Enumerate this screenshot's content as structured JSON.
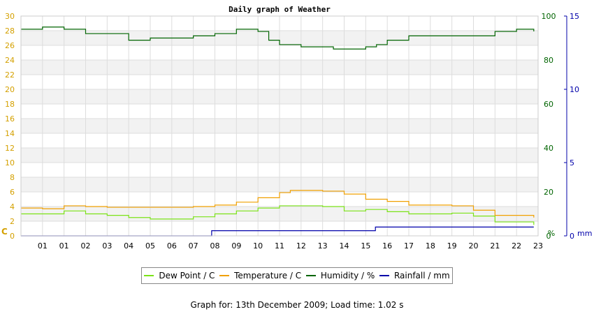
{
  "chart_data": {
    "type": "line",
    "title": "Daily graph of Weather",
    "x_tick_labels": [
      "01",
      "01",
      "02",
      "03",
      "04",
      "05",
      "06",
      "07",
      "08",
      "09",
      "10",
      "11",
      "12",
      "13",
      "14",
      "15",
      "16",
      "17",
      "18",
      "19",
      "20",
      "21",
      "22",
      "23"
    ],
    "axes": {
      "left": {
        "unit": "C",
        "ylim": [
          0,
          30
        ],
        "ticks": [
          0,
          2,
          4,
          6,
          8,
          10,
          12,
          14,
          16,
          18,
          20,
          22,
          24,
          26,
          28,
          30
        ],
        "color": "#d4a000"
      },
      "right1": {
        "unit": "%",
        "ylim": [
          0,
          100
        ],
        "ticks": [
          0,
          20,
          40,
          60,
          80,
          100
        ],
        "color": "#006400"
      },
      "right2": {
        "unit": "mm",
        "ylim": [
          0,
          15
        ],
        "ticks": [
          0,
          5,
          10,
          15
        ],
        "color": "#0000aa"
      }
    },
    "grid": true,
    "legend_position": "bottom",
    "series": [
      {
        "name": "Dew Point / C",
        "axis": "left",
        "color": "#7be317",
        "hours": [
          0,
          2,
          3,
          4,
          5,
          6,
          7,
          8,
          9,
          10,
          11,
          12,
          13,
          14,
          15,
          16,
          17,
          18,
          19,
          20,
          21,
          22,
          23,
          23.8
        ],
        "values": [
          3.0,
          3.4,
          3.0,
          2.8,
          2.5,
          2.3,
          2.3,
          2.6,
          3.0,
          3.4,
          3.8,
          4.1,
          4.1,
          4.0,
          3.4,
          3.6,
          3.3,
          3.0,
          3.0,
          3.1,
          2.7,
          1.9,
          1.9,
          1.5
        ]
      },
      {
        "name": "Temperature / C",
        "axis": "left",
        "color": "#f0a000",
        "hours": [
          0,
          1,
          2,
          3,
          4,
          5,
          6,
          7,
          8,
          9,
          10,
          11,
          12,
          12.5,
          13,
          14,
          15,
          16,
          17,
          18,
          19,
          20,
          21,
          22,
          23,
          23.8
        ],
        "values": [
          3.8,
          3.7,
          4.1,
          4.0,
          3.9,
          3.9,
          3.9,
          3.9,
          4.0,
          4.2,
          4.6,
          5.2,
          5.9,
          6.2,
          6.2,
          6.1,
          5.7,
          5.0,
          4.7,
          4.2,
          4.2,
          4.1,
          3.5,
          2.8,
          2.8,
          2.5
        ]
      },
      {
        "name": "Humidity / %",
        "axis": "right1",
        "color": "#006400",
        "hours": [
          0,
          1,
          2,
          3,
          4,
          5,
          6,
          7,
          8,
          9,
          10,
          11,
          11.5,
          12,
          13,
          14,
          14.5,
          15,
          16,
          16.5,
          17,
          18,
          19,
          20,
          21,
          22,
          23,
          23.8
        ],
        "values": [
          94,
          95,
          94,
          92,
          92,
          89,
          90,
          90,
          91,
          92,
          94,
          93,
          89,
          87,
          86,
          86,
          85,
          85,
          86,
          87,
          89,
          91,
          91,
          91,
          91,
          93,
          94,
          93
        ]
      },
      {
        "name": "Rainfall / mm",
        "axis": "right2",
        "color": "#0000aa",
        "hours": [
          0,
          8.85,
          8.85,
          16.45,
          16.45,
          23.8
        ],
        "values": [
          0,
          0,
          0.35,
          0.35,
          0.6,
          0.6
        ]
      }
    ]
  },
  "footer_text": "Graph for: 13th December 2009; Load time: 1.02 s"
}
